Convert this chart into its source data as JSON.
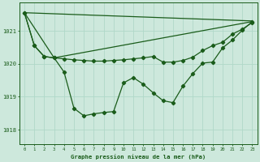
{
  "bg_color": "#cde8dc",
  "grid_color": "#b0d8c8",
  "line_color": "#1a5c1a",
  "xlabel": "Graphe pression niveau de la mer (hPa)",
  "xlim": [
    -0.5,
    23.5
  ],
  "ylim": [
    1017.55,
    1021.85
  ],
  "yticks": [
    1018,
    1019,
    1020,
    1021
  ],
  "xticks": [
    0,
    1,
    2,
    3,
    4,
    5,
    6,
    7,
    8,
    9,
    10,
    11,
    12,
    13,
    14,
    15,
    16,
    17,
    18,
    19,
    20,
    21,
    22,
    23
  ],
  "line1_x": [
    0,
    1,
    2,
    3,
    4,
    5,
    6,
    7,
    8,
    9,
    10,
    11,
    12,
    13,
    14,
    15,
    16,
    17,
    18,
    19,
    20,
    21,
    22,
    23
  ],
  "line1_y": [
    1021.55,
    1020.55,
    1020.22,
    1020.18,
    1020.15,
    1020.12,
    1020.1,
    1020.08,
    1020.08,
    1020.1,
    1020.12,
    1020.15,
    1020.18,
    1020.22,
    1020.05,
    1020.05,
    1020.1,
    1020.2,
    1020.4,
    1020.55,
    1020.65,
    1020.9,
    1021.05,
    1021.25
  ],
  "line2_x": [
    0,
    23
  ],
  "line2_y": [
    1021.55,
    1021.3
  ],
  "line3_x": [
    0,
    1,
    2,
    3,
    4,
    5,
    6,
    7,
    8,
    9,
    10,
    11,
    12,
    13,
    14,
    15,
    16,
    17,
    18,
    19,
    20,
    21,
    22,
    23
  ],
  "line3_y": [
    1021.55,
    1020.55,
    1020.22,
    1020.18,
    1019.75,
    1018.65,
    1018.42,
    1018.48,
    1018.52,
    1018.55,
    1019.42,
    1019.58,
    1019.38,
    1019.12,
    1018.88,
    1018.82,
    1019.32,
    1019.7,
    1020.02,
    1020.05,
    1020.48,
    1020.72,
    1021.02,
    1021.28
  ],
  "line4_x": [
    0,
    3,
    23
  ],
  "line4_y": [
    1021.55,
    1020.18,
    1021.28
  ]
}
